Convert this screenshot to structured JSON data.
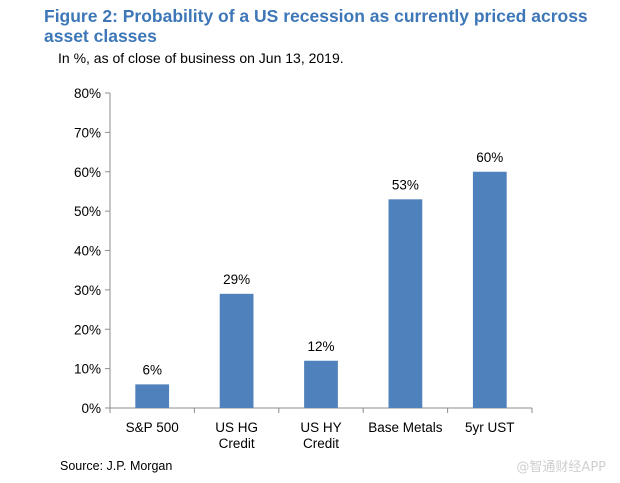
{
  "chart_data": {
    "type": "bar",
    "title": "Figure 2: Probability of a US recession as currently priced across asset classes",
    "subtitle": "In %, as of close of business on Jun 13, 2019.",
    "categories": [
      [
        "S&P 500"
      ],
      [
        "US HG",
        "Credit"
      ],
      [
        "US HY",
        "Credit"
      ],
      [
        "Base Metals"
      ],
      [
        "5yr UST"
      ]
    ],
    "values": [
      6,
      29,
      12,
      53,
      60
    ],
    "data_labels": [
      "6%",
      "29%",
      "12%",
      "53%",
      "60%"
    ],
    "yticks": [
      "0%",
      "10%",
      "20%",
      "30%",
      "40%",
      "50%",
      "60%",
      "70%",
      "80%"
    ],
    "ylim": [
      0,
      80
    ],
    "xlabel": "",
    "ylabel": "",
    "grid": false,
    "bar_color": "#4f81bd",
    "source": "Source:  J.P. Morgan"
  },
  "watermark": "@智通财经APP"
}
